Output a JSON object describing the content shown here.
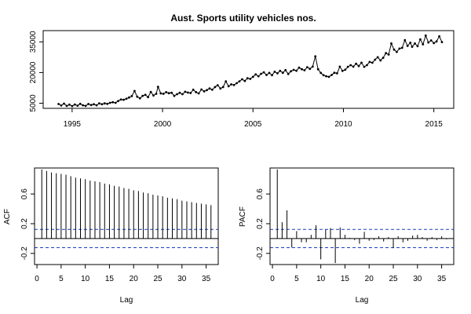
{
  "chart_data": [
    {
      "type": "line",
      "title": "Aust. Sports utility vehicles nos.",
      "xlabel": "",
      "ylabel": "",
      "xlim": [
        1993.4,
        2016.1
      ],
      "ylim": [
        2500,
        40500
      ],
      "x_ticks": [
        1995,
        2000,
        2005,
        2010,
        2015
      ],
      "x_tick_labels": [
        "1995",
        "2000",
        "2005",
        "2010",
        "2015"
      ],
      "y_ticks": [
        5000,
        20000,
        35000
      ],
      "y_tick_labels": [
        "5000",
        "20000",
        "35000"
      ],
      "grid": false,
      "legend": "none",
      "color": "#000000",
      "series": [
        {
          "points": [
            [
              1994.25,
              4600
            ],
            [
              1994.4,
              3900
            ],
            [
              1994.55,
              4800
            ],
            [
              1994.7,
              3700
            ],
            [
              1994.85,
              4300
            ],
            [
              1995.0,
              3600
            ],
            [
              1995.15,
              4400
            ],
            [
              1995.3,
              3800
            ],
            [
              1995.45,
              4700
            ],
            [
              1995.6,
              4000
            ],
            [
              1995.75,
              3700
            ],
            [
              1995.9,
              4600
            ],
            [
              1996.05,
              4100
            ],
            [
              1996.2,
              4500
            ],
            [
              1996.35,
              4000
            ],
            [
              1996.5,
              4900
            ],
            [
              1996.65,
              4500
            ],
            [
              1996.8,
              4900
            ],
            [
              1996.95,
              4700
            ],
            [
              1997.1,
              5200
            ],
            [
              1997.25,
              5500
            ],
            [
              1997.4,
              5200
            ],
            [
              1997.55,
              6100
            ],
            [
              1997.7,
              6800
            ],
            [
              1997.85,
              6700
            ],
            [
              1998.0,
              7200
            ],
            [
              1998.15,
              7800
            ],
            [
              1998.3,
              8500
            ],
            [
              1998.45,
              11000
            ],
            [
              1998.6,
              8200
            ],
            [
              1998.75,
              7400
            ],
            [
              1998.9,
              8600
            ],
            [
              1999.05,
              9100
            ],
            [
              1999.2,
              8000
            ],
            [
              1999.35,
              10500
            ],
            [
              1999.5,
              8800
            ],
            [
              1999.65,
              9600
            ],
            [
              1999.75,
              13000
            ],
            [
              1999.9,
              9800
            ],
            [
              2000.05,
              9600
            ],
            [
              2000.2,
              10400
            ],
            [
              2000.35,
              9900
            ],
            [
              2000.5,
              10100
            ],
            [
              2000.65,
              8600
            ],
            [
              2000.8,
              9400
            ],
            [
              2000.95,
              10100
            ],
            [
              2001.1,
              9400
            ],
            [
              2001.25,
              10600
            ],
            [
              2001.4,
              10200
            ],
            [
              2001.55,
              10000
            ],
            [
              2001.7,
              11600
            ],
            [
              2001.85,
              10400
            ],
            [
              2002.0,
              9800
            ],
            [
              2002.15,
              11700
            ],
            [
              2002.3,
              10800
            ],
            [
              2002.45,
              11400
            ],
            [
              2002.6,
              12200
            ],
            [
              2002.75,
              11600
            ],
            [
              2002.9,
              12900
            ],
            [
              2003.05,
              13800
            ],
            [
              2003.2,
              12200
            ],
            [
              2003.35,
              12900
            ],
            [
              2003.5,
              15700
            ],
            [
              2003.65,
              13300
            ],
            [
              2003.8,
              14200
            ],
            [
              2003.95,
              13900
            ],
            [
              2004.1,
              14800
            ],
            [
              2004.25,
              15700
            ],
            [
              2004.4,
              16700
            ],
            [
              2004.55,
              15900
            ],
            [
              2004.7,
              17200
            ],
            [
              2004.85,
              16900
            ],
            [
              2005.0,
              17900
            ],
            [
              2005.15,
              19100
            ],
            [
              2005.3,
              18200
            ],
            [
              2005.45,
              19400
            ],
            [
              2005.6,
              20100
            ],
            [
              2005.75,
              18800
            ],
            [
              2005.9,
              19800
            ],
            [
              2006.05,
              18700
            ],
            [
              2006.2,
              20400
            ],
            [
              2006.35,
              19600
            ],
            [
              2006.5,
              20800
            ],
            [
              2006.65,
              19900
            ],
            [
              2006.8,
              21200
            ],
            [
              2006.95,
              19300
            ],
            [
              2007.1,
              20600
            ],
            [
              2007.25,
              21300
            ],
            [
              2007.4,
              20900
            ],
            [
              2007.55,
              22400
            ],
            [
              2007.7,
              21600
            ],
            [
              2007.85,
              21100
            ],
            [
              2008.0,
              22600
            ],
            [
              2008.15,
              21800
            ],
            [
              2008.3,
              22900
            ],
            [
              2008.45,
              27900
            ],
            [
              2008.6,
              21600
            ],
            [
              2008.75,
              19800
            ],
            [
              2008.9,
              18700
            ],
            [
              2009.05,
              18200
            ],
            [
              2009.2,
              17900
            ],
            [
              2009.35,
              18800
            ],
            [
              2009.5,
              19900
            ],
            [
              2009.65,
              19600
            ],
            [
              2009.8,
              22900
            ],
            [
              2009.95,
              20800
            ],
            [
              2010.1,
              21400
            ],
            [
              2010.25,
              22800
            ],
            [
              2010.4,
              23600
            ],
            [
              2010.55,
              22900
            ],
            [
              2010.7,
              24300
            ],
            [
              2010.85,
              23200
            ],
            [
              2011.0,
              24800
            ],
            [
              2011.15,
              22800
            ],
            [
              2011.3,
              23600
            ],
            [
              2011.45,
              25200
            ],
            [
              2011.6,
              24800
            ],
            [
              2011.75,
              26300
            ],
            [
              2011.9,
              27500
            ],
            [
              2012.05,
              25900
            ],
            [
              2012.2,
              27200
            ],
            [
              2012.35,
              29500
            ],
            [
              2012.5,
              28800
            ],
            [
              2012.65,
              34200
            ],
            [
              2012.8,
              31200
            ],
            [
              2012.95,
              30100
            ],
            [
              2013.1,
              31700
            ],
            [
              2013.25,
              32100
            ],
            [
              2013.4,
              35800
            ],
            [
              2013.55,
              33000
            ],
            [
              2013.7,
              34600
            ],
            [
              2013.8,
              32600
            ],
            [
              2013.95,
              34200
            ],
            [
              2014.1,
              32900
            ],
            [
              2014.25,
              36200
            ],
            [
              2014.4,
              33800
            ],
            [
              2014.55,
              38100
            ],
            [
              2014.7,
              34700
            ],
            [
              2014.85,
              35700
            ],
            [
              2015.0,
              34400
            ],
            [
              2015.15,
              35200
            ],
            [
              2015.3,
              37700
            ],
            [
              2015.45,
              34900
            ]
          ]
        }
      ]
    },
    {
      "type": "bar",
      "ylabel": "ACF",
      "xlabel": "Lag",
      "xlim": [
        -0.5,
        37.5
      ],
      "ylim": [
        -0.35,
        0.95
      ],
      "x_ticks": [
        0,
        5,
        10,
        15,
        20,
        25,
        30,
        35
      ],
      "x_tick_labels": [
        "0",
        "5",
        "10",
        "15",
        "20",
        "25",
        "30",
        "35"
      ],
      "y_ticks": [
        -0.2,
        0.2,
        0.6
      ],
      "y_tick_labels": [
        "-0.2",
        "0.2",
        "0.6"
      ],
      "confidence_bound": 0.123,
      "lags": [
        1,
        2,
        3,
        4,
        5,
        6,
        7,
        8,
        9,
        10,
        11,
        12,
        13,
        14,
        15,
        16,
        17,
        18,
        19,
        20,
        21,
        22,
        23,
        24,
        25,
        26,
        27,
        28,
        29,
        30,
        31,
        32,
        33,
        34,
        35,
        36
      ],
      "values": [
        0.93,
        0.91,
        0.89,
        0.88,
        0.87,
        0.86,
        0.84,
        0.82,
        0.81,
        0.8,
        0.78,
        0.77,
        0.76,
        0.74,
        0.73,
        0.71,
        0.7,
        0.68,
        0.67,
        0.65,
        0.64,
        0.62,
        0.61,
        0.59,
        0.58,
        0.57,
        0.55,
        0.54,
        0.53,
        0.51,
        0.5,
        0.49,
        0.48,
        0.47,
        0.46,
        0.45
      ]
    },
    {
      "type": "bar",
      "ylabel": "PACF",
      "xlabel": "Lag",
      "xlim": [
        -0.5,
        37.5
      ],
      "ylim": [
        -0.35,
        0.95
      ],
      "x_ticks": [
        0,
        5,
        10,
        15,
        20,
        25,
        30,
        35
      ],
      "x_tick_labels": [
        "0",
        "5",
        "10",
        "15",
        "20",
        "25",
        "30",
        "35"
      ],
      "y_ticks": [
        -0.2,
        0.2,
        0.6
      ],
      "y_tick_labels": [
        "-0.2",
        "0.2",
        "0.6"
      ],
      "confidence_bound": 0.123,
      "lags": [
        1,
        2,
        3,
        4,
        5,
        6,
        7,
        8,
        9,
        10,
        11,
        12,
        13,
        14,
        15,
        16,
        17,
        18,
        19,
        20,
        21,
        22,
        23,
        24,
        25,
        26,
        27,
        28,
        29,
        30,
        31,
        32,
        33,
        34,
        35,
        36
      ],
      "values": [
        0.93,
        0.22,
        0.38,
        -0.12,
        0.1,
        -0.05,
        -0.05,
        0.05,
        0.18,
        -0.28,
        0.12,
        0.14,
        -0.33,
        0.15,
        0.05,
        0.01,
        -0.02,
        -0.07,
        0.09,
        -0.03,
        -0.02,
        0.03,
        -0.04,
        0.02,
        -0.13,
        0.03,
        -0.05,
        -0.03,
        0.04,
        0.05,
        0.02,
        -0.03,
        0.02,
        -0.02,
        0.03,
        -0.01
      ],
      "colors": {
        "bound": "#1f3fbf"
      }
    }
  ]
}
